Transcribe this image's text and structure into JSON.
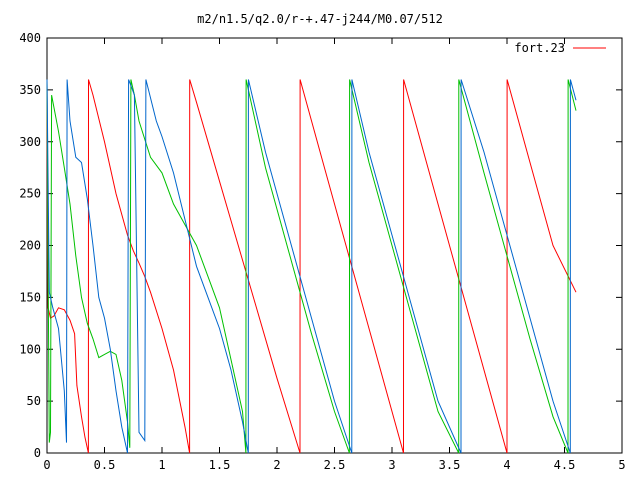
{
  "chart_data": {
    "type": "line",
    "title": "m2/n1.5/q2.0/r-+.47-j244/M0.07/512",
    "xlabel": "",
    "ylabel": "",
    "xlim": [
      0,
      5
    ],
    "ylim": [
      0,
      400
    ],
    "xticks": [
      "0",
      "0.5",
      "1",
      "1.5",
      "2",
      "2.5",
      "3",
      "3.5",
      "4",
      "4.5",
      "5"
    ],
    "yticks": [
      "0",
      "50",
      "100",
      "150",
      "200",
      "250",
      "300",
      "350",
      "400"
    ],
    "grid": false,
    "legend": {
      "position": "top-right"
    },
    "series": [
      {
        "name": "fort.23",
        "color": "#ff0000",
        "points": [
          [
            0.0,
            360
          ],
          [
            0.005,
            200
          ],
          [
            0.01,
            140
          ],
          [
            0.03,
            130
          ],
          [
            0.06,
            132
          ],
          [
            0.1,
            140
          ],
          [
            0.15,
            138
          ],
          [
            0.2,
            128
          ],
          [
            0.24,
            115
          ],
          [
            0.26,
            65
          ],
          [
            0.3,
            35
          ],
          [
            0.33,
            15
          ],
          [
            0.36,
            0
          ],
          [
            0.361,
            360
          ],
          [
            0.4,
            345
          ],
          [
            0.5,
            300
          ],
          [
            0.6,
            250
          ],
          [
            0.7,
            210
          ],
          [
            0.75,
            195
          ],
          [
            0.8,
            183
          ],
          [
            0.85,
            170
          ],
          [
            0.9,
            155
          ],
          [
            1.0,
            120
          ],
          [
            1.1,
            80
          ],
          [
            1.2,
            25
          ],
          [
            1.24,
            0
          ],
          [
            1.241,
            360
          ],
          [
            1.3,
            338
          ],
          [
            1.4,
            300
          ],
          [
            1.6,
            224
          ],
          [
            1.8,
            148
          ],
          [
            2.0,
            72
          ],
          [
            2.2,
            0
          ],
          [
            2.201,
            360
          ],
          [
            2.4,
            280
          ],
          [
            2.6,
            200
          ],
          [
            2.8,
            120
          ],
          [
            3.0,
            40
          ],
          [
            3.1,
            0
          ],
          [
            3.101,
            360
          ],
          [
            3.3,
            280
          ],
          [
            3.5,
            200
          ],
          [
            3.7,
            120
          ],
          [
            3.9,
            40
          ],
          [
            4.0,
            0
          ],
          [
            4.001,
            360
          ],
          [
            4.2,
            280
          ],
          [
            4.4,
            200
          ],
          [
            4.6,
            155
          ]
        ]
      },
      {
        "name": "",
        "color": "#00c000",
        "points": [
          [
            0.0,
            360
          ],
          [
            0.01,
            180
          ],
          [
            0.02,
            10
          ],
          [
            0.03,
            20
          ],
          [
            0.04,
            345
          ],
          [
            0.1,
            310
          ],
          [
            0.15,
            275
          ],
          [
            0.2,
            240
          ],
          [
            0.25,
            190
          ],
          [
            0.3,
            150
          ],
          [
            0.35,
            125
          ],
          [
            0.4,
            110
          ],
          [
            0.45,
            92
          ],
          [
            0.5,
            95
          ],
          [
            0.55,
            98
          ],
          [
            0.6,
            95
          ],
          [
            0.65,
            70
          ],
          [
            0.7,
            30
          ],
          [
            0.72,
            5
          ],
          [
            0.73,
            360
          ],
          [
            0.76,
            345
          ],
          [
            0.8,
            320
          ],
          [
            0.9,
            285
          ],
          [
            1.0,
            270
          ],
          [
            1.1,
            240
          ],
          [
            1.2,
            220
          ],
          [
            1.3,
            200
          ],
          [
            1.4,
            170
          ],
          [
            1.5,
            140
          ],
          [
            1.6,
            90
          ],
          [
            1.7,
            40
          ],
          [
            1.73,
            0
          ],
          [
            1.731,
            360
          ],
          [
            1.9,
            275
          ],
          [
            2.1,
            195
          ],
          [
            2.3,
            115
          ],
          [
            2.5,
            40
          ],
          [
            2.63,
            0
          ],
          [
            2.631,
            360
          ],
          [
            2.8,
            280
          ],
          [
            3.0,
            200
          ],
          [
            3.2,
            120
          ],
          [
            3.4,
            40
          ],
          [
            3.58,
            0
          ],
          [
            3.581,
            360
          ],
          [
            3.8,
            270
          ],
          [
            4.0,
            190
          ],
          [
            4.2,
            110
          ],
          [
            4.4,
            35
          ],
          [
            4.53,
            0
          ],
          [
            4.531,
            360
          ],
          [
            4.6,
            330
          ]
        ]
      },
      {
        "name": "",
        "color": "#0066cc",
        "points": [
          [
            0.0,
            360
          ],
          [
            0.02,
            155
          ],
          [
            0.05,
            140
          ],
          [
            0.1,
            120
          ],
          [
            0.15,
            60
          ],
          [
            0.17,
            10
          ],
          [
            0.175,
            360
          ],
          [
            0.2,
            320
          ],
          [
            0.25,
            285
          ],
          [
            0.3,
            280
          ],
          [
            0.35,
            245
          ],
          [
            0.4,
            200
          ],
          [
            0.45,
            150
          ],
          [
            0.5,
            130
          ],
          [
            0.55,
            100
          ],
          [
            0.6,
            60
          ],
          [
            0.65,
            25
          ],
          [
            0.7,
            0
          ],
          [
            0.71,
            360
          ],
          [
            0.76,
            345
          ],
          [
            0.8,
            20
          ],
          [
            0.85,
            12
          ],
          [
            0.86,
            360
          ],
          [
            0.95,
            320
          ],
          [
            1.0,
            305
          ],
          [
            1.1,
            270
          ],
          [
            1.2,
            225
          ],
          [
            1.3,
            180
          ],
          [
            1.4,
            150
          ],
          [
            1.5,
            120
          ],
          [
            1.6,
            80
          ],
          [
            1.7,
            30
          ],
          [
            1.75,
            0
          ],
          [
            1.751,
            360
          ],
          [
            1.9,
            290
          ],
          [
            2.1,
            210
          ],
          [
            2.3,
            130
          ],
          [
            2.5,
            50
          ],
          [
            2.65,
            0
          ],
          [
            2.651,
            360
          ],
          [
            2.8,
            290
          ],
          [
            3.0,
            210
          ],
          [
            3.2,
            130
          ],
          [
            3.4,
            50
          ],
          [
            3.6,
            0
          ],
          [
            3.601,
            360
          ],
          [
            3.8,
            290
          ],
          [
            4.0,
            210
          ],
          [
            4.2,
            130
          ],
          [
            4.4,
            50
          ],
          [
            4.55,
            0
          ],
          [
            4.551,
            360
          ],
          [
            4.6,
            340
          ]
        ]
      }
    ]
  }
}
